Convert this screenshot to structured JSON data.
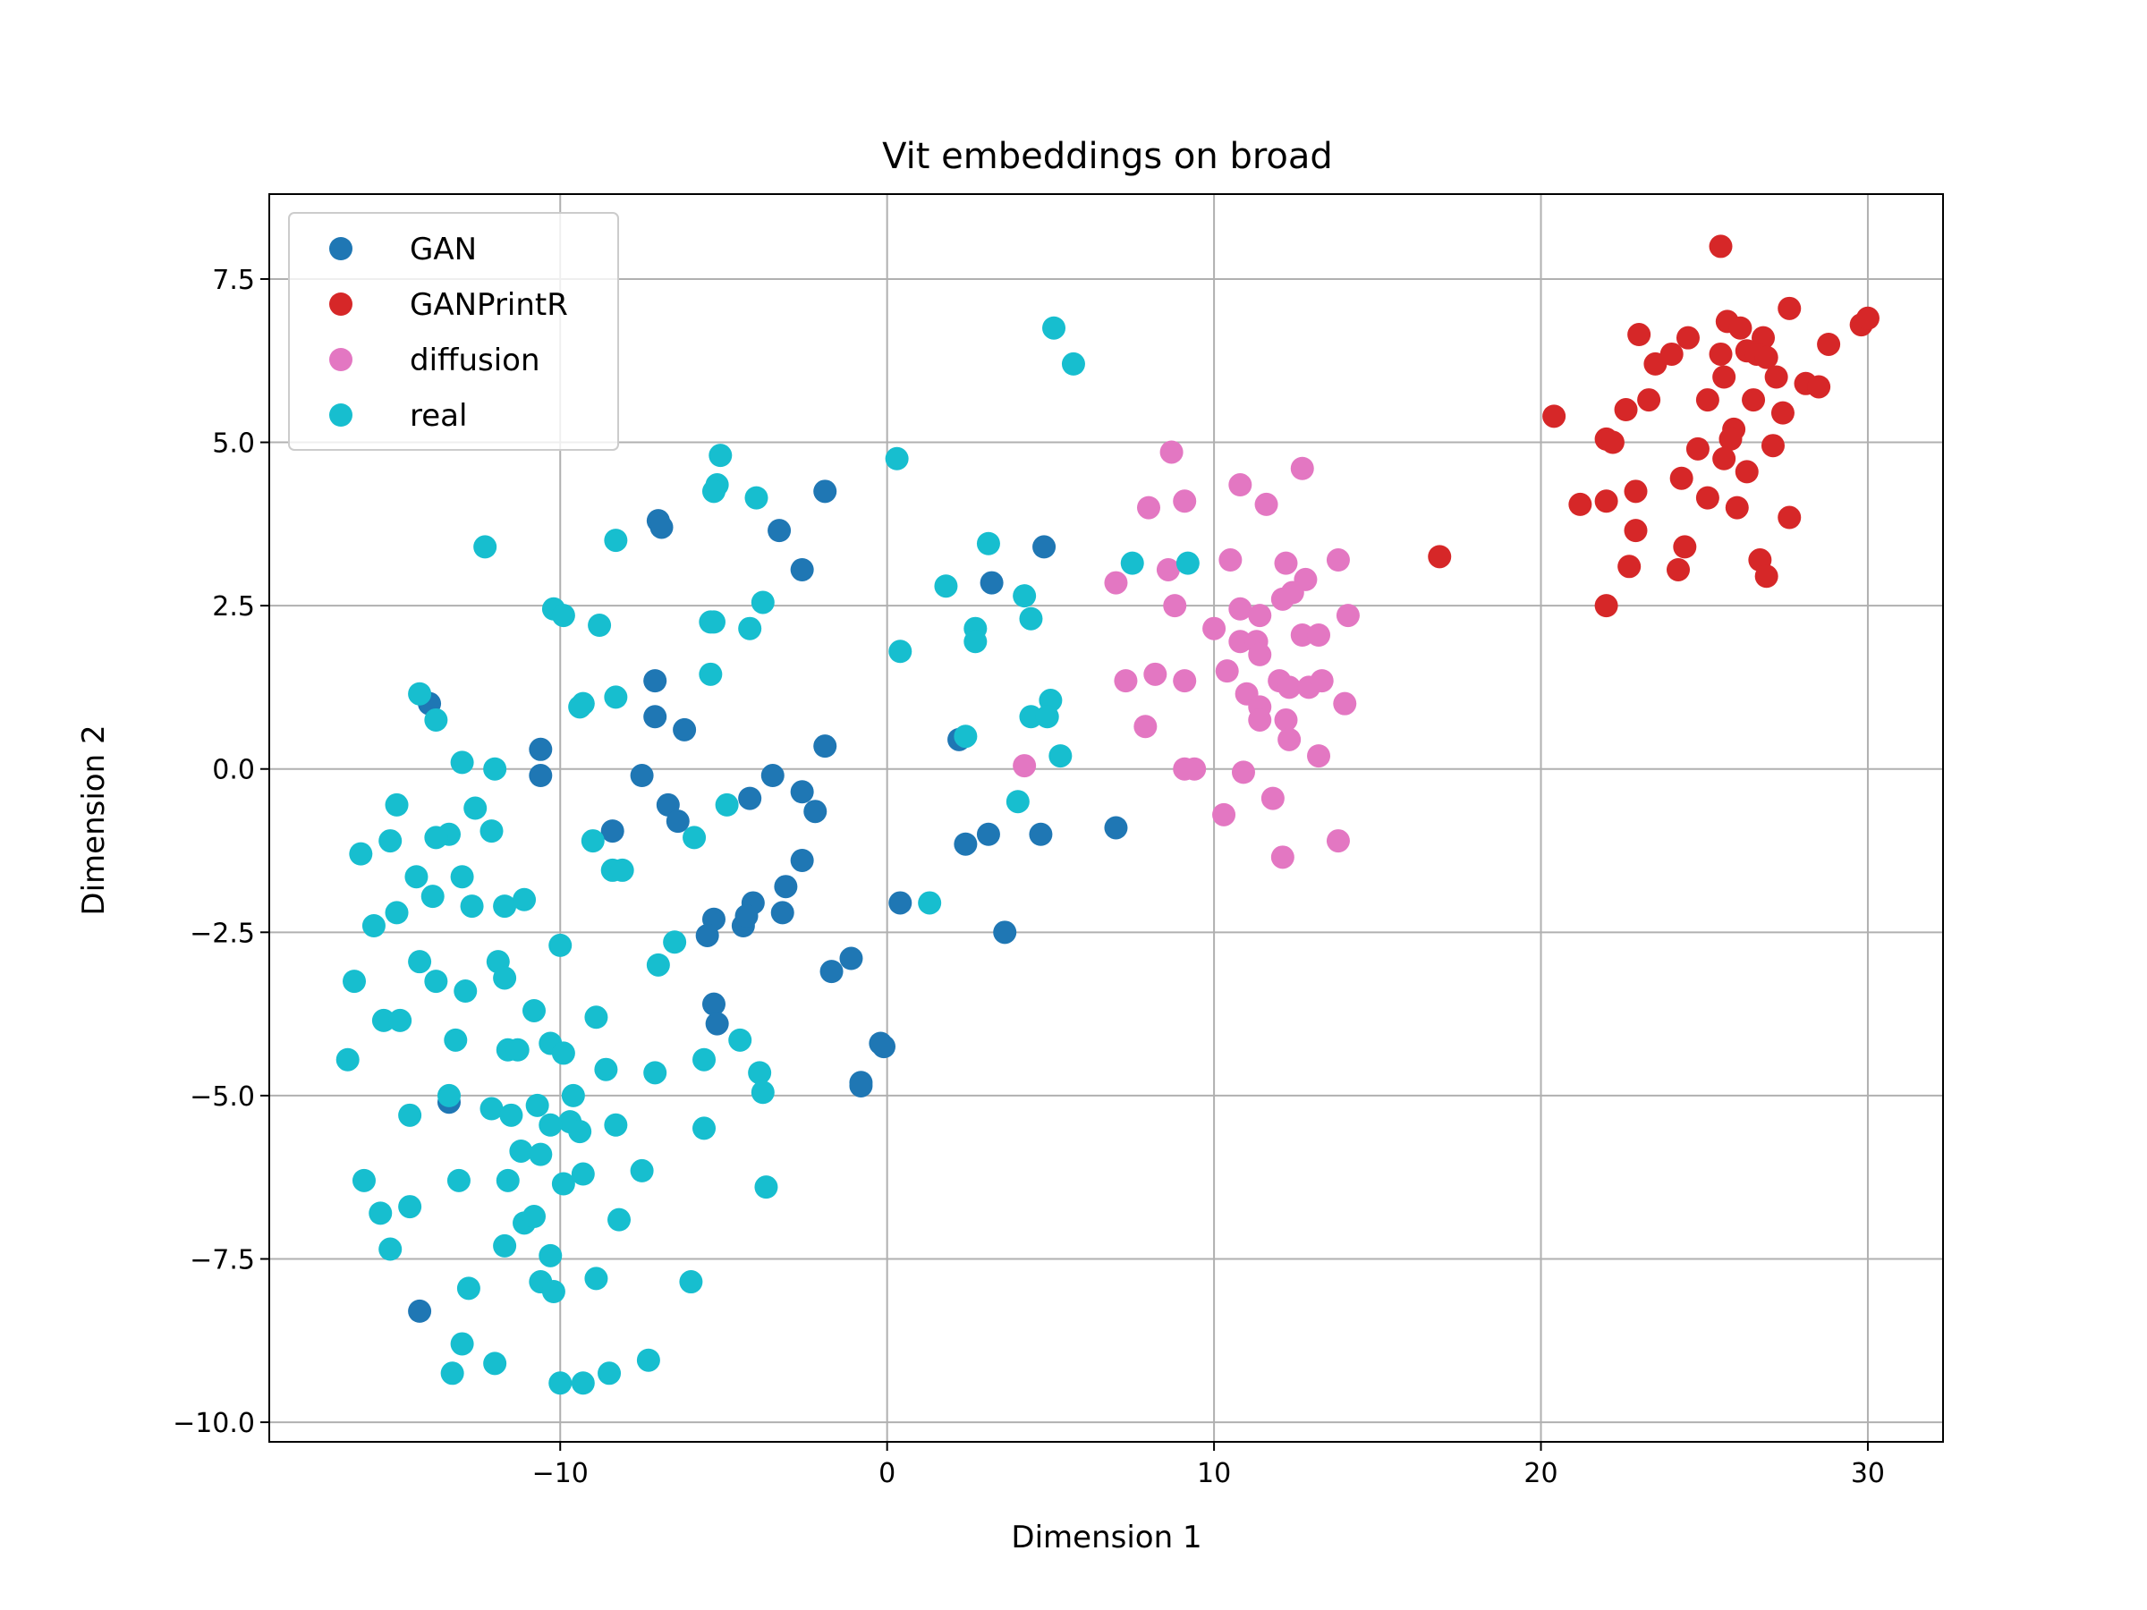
{
  "chart_data": {
    "type": "scatter",
    "title": "Vit embeddings on broad",
    "xlabel": "Dimension 1",
    "ylabel": "Dimension 2",
    "xlim": [
      -18.9,
      32.3
    ],
    "ylim": [
      -10.3,
      8.8
    ],
    "xticks": [
      -10,
      0,
      10,
      20,
      30
    ],
    "xtick_labels": [
      "−10",
      "0",
      "10",
      "20",
      "30"
    ],
    "yticks": [
      -10.0,
      -7.5,
      -5.0,
      -2.5,
      0.0,
      2.5,
      5.0,
      7.5
    ],
    "ytick_labels": [
      "−10.0",
      "−7.5",
      "−5.0",
      "−2.5",
      "0.0",
      "2.5",
      "5.0",
      "7.5"
    ],
    "grid": true,
    "legend_position": "top-left",
    "series": [
      {
        "name": "GAN",
        "color": "#1f77b4",
        "points": [
          [
            -14.0,
            1.0
          ],
          [
            -10.6,
            0.3
          ],
          [
            -10.6,
            -0.1
          ],
          [
            -7.1,
            1.35
          ],
          [
            -7.0,
            3.8
          ],
          [
            -6.9,
            3.7
          ],
          [
            -7.1,
            0.8
          ],
          [
            -6.2,
            0.6
          ],
          [
            -7.5,
            -0.1
          ],
          [
            -6.7,
            -0.55
          ],
          [
            -6.4,
            -0.8
          ],
          [
            -8.4,
            -0.95
          ],
          [
            -3.3,
            3.65
          ],
          [
            -2.6,
            3.05
          ],
          [
            -1.9,
            4.25
          ],
          [
            -1.9,
            0.35
          ],
          [
            -4.2,
            -0.45
          ],
          [
            -3.5,
            -0.1
          ],
          [
            -2.6,
            -0.35
          ],
          [
            -2.2,
            -0.65
          ],
          [
            -2.6,
            -1.4
          ],
          [
            -3.1,
            -1.8
          ],
          [
            -3.2,
            -2.2
          ],
          [
            -4.1,
            -2.05
          ],
          [
            -4.4,
            -2.4
          ],
          [
            -4.3,
            -2.25
          ],
          [
            -5.3,
            -2.3
          ],
          [
            -5.5,
            -2.55
          ],
          [
            -5.3,
            -3.6
          ],
          [
            -5.2,
            -3.9
          ],
          [
            -1.7,
            -3.1
          ],
          [
            -1.1,
            -2.9
          ],
          [
            -0.1,
            -4.25
          ],
          [
            -0.2,
            -4.2
          ],
          [
            -0.8,
            -4.8
          ],
          [
            -0.8,
            -4.85
          ],
          [
            0.4,
            -2.05
          ],
          [
            2.2,
            0.45
          ],
          [
            2.4,
            -1.15
          ],
          [
            3.1,
            -1.0
          ],
          [
            3.2,
            2.85
          ],
          [
            4.8,
            3.4
          ],
          [
            4.7,
            -1.0
          ],
          [
            3.6,
            -2.5
          ],
          [
            7.0,
            -0.9
          ],
          [
            -13.4,
            -5.1
          ],
          [
            -14.3,
            -8.3
          ]
        ]
      },
      {
        "name": "GANPrintR",
        "color": "#d62728",
        "points": [
          [
            25.5,
            8.0
          ],
          [
            27.6,
            7.05
          ],
          [
            29.8,
            6.8
          ],
          [
            30.0,
            6.9
          ],
          [
            23.0,
            6.65
          ],
          [
            24.5,
            6.6
          ],
          [
            25.7,
            6.85
          ],
          [
            26.1,
            6.75
          ],
          [
            26.8,
            6.6
          ],
          [
            24.0,
            6.35
          ],
          [
            25.5,
            6.35
          ],
          [
            26.3,
            6.4
          ],
          [
            26.6,
            6.35
          ],
          [
            26.9,
            6.3
          ],
          [
            23.5,
            6.2
          ],
          [
            28.8,
            6.5
          ],
          [
            25.6,
            6.0
          ],
          [
            27.2,
            6.0
          ],
          [
            28.1,
            5.9
          ],
          [
            28.5,
            5.85
          ],
          [
            23.3,
            5.65
          ],
          [
            25.1,
            5.65
          ],
          [
            26.5,
            5.65
          ],
          [
            22.6,
            5.5
          ],
          [
            27.4,
            5.45
          ],
          [
            20.4,
            5.4
          ],
          [
            22.0,
            5.05
          ],
          [
            22.2,
            5.0
          ],
          [
            25.9,
            5.2
          ],
          [
            25.8,
            5.05
          ],
          [
            24.8,
            4.9
          ],
          [
            27.1,
            4.95
          ],
          [
            25.6,
            4.75
          ],
          [
            26.3,
            4.55
          ],
          [
            24.3,
            4.45
          ],
          [
            22.9,
            4.25
          ],
          [
            25.1,
            4.15
          ],
          [
            21.2,
            4.05
          ],
          [
            22.0,
            4.1
          ],
          [
            26.0,
            4.0
          ],
          [
            27.6,
            3.85
          ],
          [
            22.9,
            3.65
          ],
          [
            24.4,
            3.4
          ],
          [
            22.7,
            3.1
          ],
          [
            24.2,
            3.05
          ],
          [
            26.7,
            3.2
          ],
          [
            26.9,
            2.95
          ],
          [
            22.0,
            2.5
          ],
          [
            16.9,
            3.25
          ]
        ]
      },
      {
        "name": "diffusion",
        "color": "#e377c2",
        "points": [
          [
            8.7,
            4.85
          ],
          [
            12.7,
            4.6
          ],
          [
            10.8,
            4.35
          ],
          [
            9.1,
            4.1
          ],
          [
            11.6,
            4.05
          ],
          [
            8.0,
            4.0
          ],
          [
            10.5,
            3.2
          ],
          [
            12.2,
            3.15
          ],
          [
            13.8,
            3.2
          ],
          [
            8.6,
            3.05
          ],
          [
            7.0,
            2.85
          ],
          [
            12.8,
            2.9
          ],
          [
            12.4,
            2.7
          ],
          [
            12.1,
            2.6
          ],
          [
            8.8,
            2.5
          ],
          [
            10.8,
            2.45
          ],
          [
            11.4,
            2.35
          ],
          [
            14.1,
            2.35
          ],
          [
            10.0,
            2.15
          ],
          [
            12.7,
            2.05
          ],
          [
            13.2,
            2.05
          ],
          [
            10.8,
            1.95
          ],
          [
            11.3,
            1.95
          ],
          [
            11.4,
            1.75
          ],
          [
            8.2,
            1.45
          ],
          [
            7.3,
            1.35
          ],
          [
            9.1,
            1.35
          ],
          [
            10.4,
            1.5
          ],
          [
            12.0,
            1.35
          ],
          [
            12.3,
            1.25
          ],
          [
            12.9,
            1.25
          ],
          [
            13.3,
            1.35
          ],
          [
            11.0,
            1.15
          ],
          [
            11.4,
            0.95
          ],
          [
            11.4,
            0.75
          ],
          [
            14.0,
            1.0
          ],
          [
            7.9,
            0.65
          ],
          [
            12.2,
            0.75
          ],
          [
            12.3,
            0.45
          ],
          [
            13.2,
            0.2
          ],
          [
            4.2,
            0.05
          ],
          [
            9.1,
            -0.0
          ],
          [
            9.4,
            -0.0
          ],
          [
            10.9,
            -0.05
          ],
          [
            11.8,
            -0.45
          ],
          [
            10.3,
            -0.7
          ],
          [
            13.8,
            -1.1
          ],
          [
            12.1,
            -1.35
          ]
        ]
      },
      {
        "name": "real",
        "color": "#17becf",
        "points": [
          [
            5.1,
            6.75
          ],
          [
            5.7,
            6.2
          ],
          [
            -5.1,
            4.8
          ],
          [
            0.3,
            4.75
          ],
          [
            -5.2,
            4.35
          ],
          [
            -5.3,
            4.25
          ],
          [
            -4.0,
            4.15
          ],
          [
            -12.3,
            3.4
          ],
          [
            -8.3,
            3.5
          ],
          [
            3.1,
            3.45
          ],
          [
            7.5,
            3.15
          ],
          [
            9.2,
            3.15
          ],
          [
            1.8,
            2.8
          ],
          [
            -3.8,
            2.55
          ],
          [
            -10.2,
            2.45
          ],
          [
            -9.9,
            2.35
          ],
          [
            4.2,
            2.65
          ],
          [
            4.4,
            2.3
          ],
          [
            -5.4,
            2.25
          ],
          [
            -5.3,
            2.25
          ],
          [
            -4.2,
            2.15
          ],
          [
            -8.8,
            2.2
          ],
          [
            2.7,
            2.15
          ],
          [
            2.7,
            1.95
          ],
          [
            0.4,
            1.8
          ],
          [
            -14.3,
            1.15
          ],
          [
            -9.3,
            1.0
          ],
          [
            -9.4,
            0.95
          ],
          [
            -8.3,
            1.1
          ],
          [
            -5.4,
            1.45
          ],
          [
            5.0,
            1.05
          ],
          [
            4.4,
            0.8
          ],
          [
            4.9,
            0.8
          ],
          [
            -13.8,
            0.75
          ],
          [
            2.4,
            0.5
          ],
          [
            5.3,
            0.2
          ],
          [
            -13.0,
            0.1
          ],
          [
            -12.0,
            0.0
          ],
          [
            -15.0,
            -0.55
          ],
          [
            -12.6,
            -0.6
          ],
          [
            -4.9,
            -0.55
          ],
          [
            4.0,
            -0.5
          ],
          [
            -12.1,
            -0.95
          ],
          [
            -13.4,
            -1.0
          ],
          [
            -13.8,
            -1.05
          ],
          [
            -15.2,
            -1.1
          ],
          [
            -5.9,
            -1.05
          ],
          [
            -9.0,
            -1.1
          ],
          [
            -16.1,
            -1.3
          ],
          [
            -14.4,
            -1.65
          ],
          [
            -13.0,
            -1.65
          ],
          [
            -8.4,
            -1.55
          ],
          [
            -8.1,
            -1.55
          ],
          [
            -13.9,
            -1.95
          ],
          [
            -11.7,
            -2.1
          ],
          [
            -12.7,
            -2.1
          ],
          [
            -11.1,
            -2.0
          ],
          [
            -15.0,
            -2.2
          ],
          [
            1.3,
            -2.05
          ],
          [
            -15.7,
            -2.4
          ],
          [
            -6.5,
            -2.65
          ],
          [
            -10.0,
            -2.7
          ],
          [
            -14.3,
            -2.95
          ],
          [
            -11.9,
            -2.95
          ],
          [
            -7.0,
            -3.0
          ],
          [
            -16.3,
            -3.25
          ],
          [
            -13.8,
            -3.25
          ],
          [
            -11.7,
            -3.2
          ],
          [
            -12.9,
            -3.4
          ],
          [
            -10.8,
            -3.7
          ],
          [
            -8.9,
            -3.8
          ],
          [
            -15.4,
            -3.85
          ],
          [
            -14.9,
            -3.85
          ],
          [
            -13.2,
            -4.15
          ],
          [
            -4.5,
            -4.15
          ],
          [
            -11.6,
            -4.3
          ],
          [
            -11.3,
            -4.3
          ],
          [
            -10.3,
            -4.2
          ],
          [
            -9.9,
            -4.35
          ],
          [
            -16.5,
            -4.45
          ],
          [
            -5.6,
            -4.45
          ],
          [
            -7.1,
            -4.65
          ],
          [
            -8.6,
            -4.6
          ],
          [
            -3.9,
            -4.65
          ],
          [
            -13.4,
            -5.0
          ],
          [
            -9.6,
            -5.0
          ],
          [
            -3.8,
            -4.95
          ],
          [
            -12.1,
            -5.2
          ],
          [
            -11.5,
            -5.3
          ],
          [
            -10.7,
            -5.15
          ],
          [
            -14.6,
            -5.3
          ],
          [
            -9.7,
            -5.4
          ],
          [
            -10.3,
            -5.45
          ],
          [
            -8.3,
            -5.45
          ],
          [
            -5.6,
            -5.5
          ],
          [
            -9.4,
            -5.55
          ],
          [
            -11.2,
            -5.85
          ],
          [
            -10.6,
            -5.9
          ],
          [
            -9.9,
            -6.35
          ],
          [
            -9.3,
            -6.2
          ],
          [
            -7.5,
            -6.15
          ],
          [
            -11.6,
            -6.3
          ],
          [
            -13.1,
            -6.3
          ],
          [
            -16.0,
            -6.3
          ],
          [
            -3.7,
            -6.4
          ],
          [
            -15.5,
            -6.8
          ],
          [
            -14.6,
            -6.7
          ],
          [
            -11.1,
            -6.95
          ],
          [
            -10.8,
            -6.85
          ],
          [
            -8.2,
            -6.9
          ],
          [
            -15.2,
            -7.35
          ],
          [
            -11.7,
            -7.3
          ],
          [
            -10.3,
            -7.45
          ],
          [
            -10.6,
            -7.85
          ],
          [
            -10.2,
            -8.0
          ],
          [
            -8.9,
            -7.8
          ],
          [
            -6.0,
            -7.85
          ],
          [
            -12.8,
            -7.95
          ],
          [
            -13.0,
            -8.8
          ],
          [
            -12.0,
            -9.1
          ],
          [
            -13.3,
            -9.25
          ],
          [
            -10.0,
            -9.4
          ],
          [
            -9.3,
            -9.4
          ],
          [
            -8.5,
            -9.25
          ],
          [
            -7.3,
            -9.05
          ]
        ]
      }
    ]
  }
}
